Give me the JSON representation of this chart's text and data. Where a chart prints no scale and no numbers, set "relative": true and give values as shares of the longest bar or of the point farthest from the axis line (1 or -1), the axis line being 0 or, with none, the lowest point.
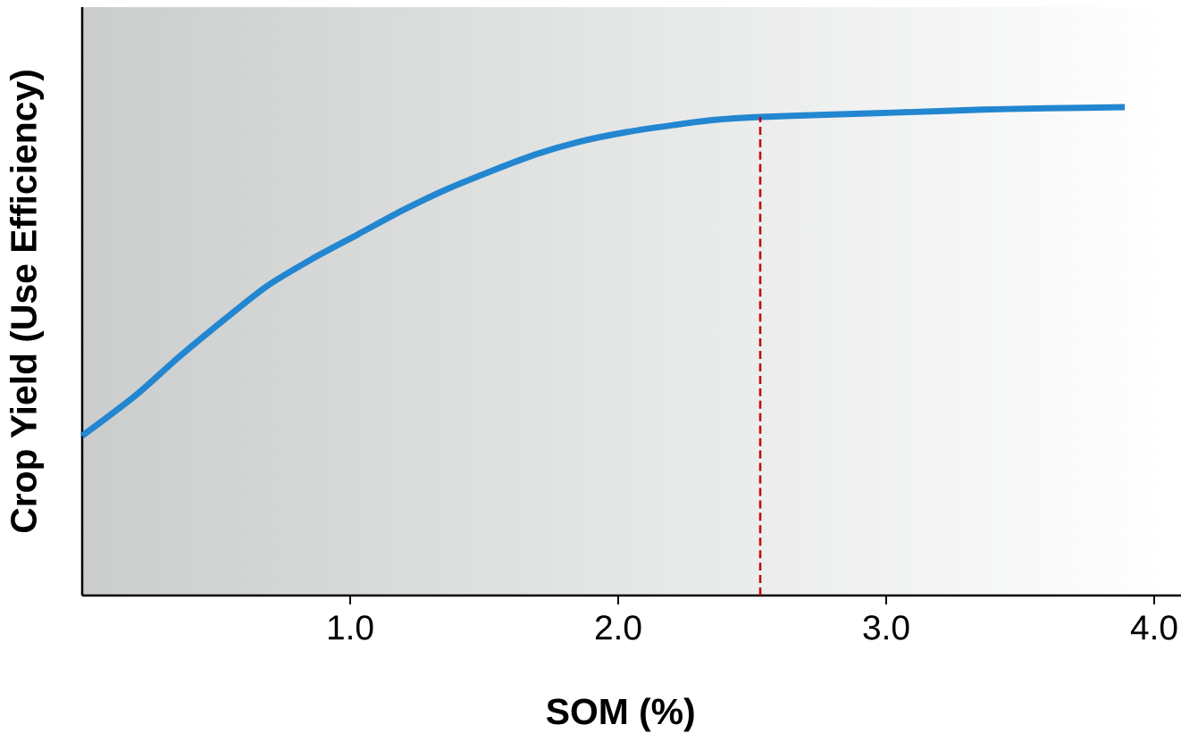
{
  "chart_data": {
    "type": "line",
    "relative": true,
    "xlabel": "SOM (%)",
    "ylabel": "Crop Yield (Use Efficiency)",
    "xlim": [
      0,
      4.1
    ],
    "xticks": [
      {
        "value": 1,
        "label": "1.0"
      },
      {
        "value": 2,
        "label": "2.0"
      },
      {
        "value": 3,
        "label": "3.0"
      },
      {
        "value": 4,
        "label": "4.0"
      }
    ],
    "series": [
      {
        "color": "#2286d0",
        "x": [
          0.0,
          0.2,
          0.36,
          0.53,
          0.69,
          0.86,
          1.03,
          1.2,
          1.36,
          1.53,
          1.69,
          1.86,
          2.03,
          2.2,
          2.36,
          2.53,
          2.8,
          3.03,
          3.36,
          3.6,
          3.89
        ],
        "values": [
          0.327,
          0.41,
          0.488,
          0.565,
          0.634,
          0.69,
          0.74,
          0.79,
          0.832,
          0.87,
          0.903,
          0.93,
          0.949,
          0.963,
          0.974,
          0.98,
          0.985,
          0.989,
          0.995,
          0.998,
          1.0
        ]
      }
    ],
    "ref_lines": [
      {
        "axis": "x",
        "value": 2.53,
        "color": "#c00000",
        "line_style": "dashed"
      }
    ],
    "grid": false,
    "legend": false,
    "marker": "none",
    "line_style": "solid"
  }
}
